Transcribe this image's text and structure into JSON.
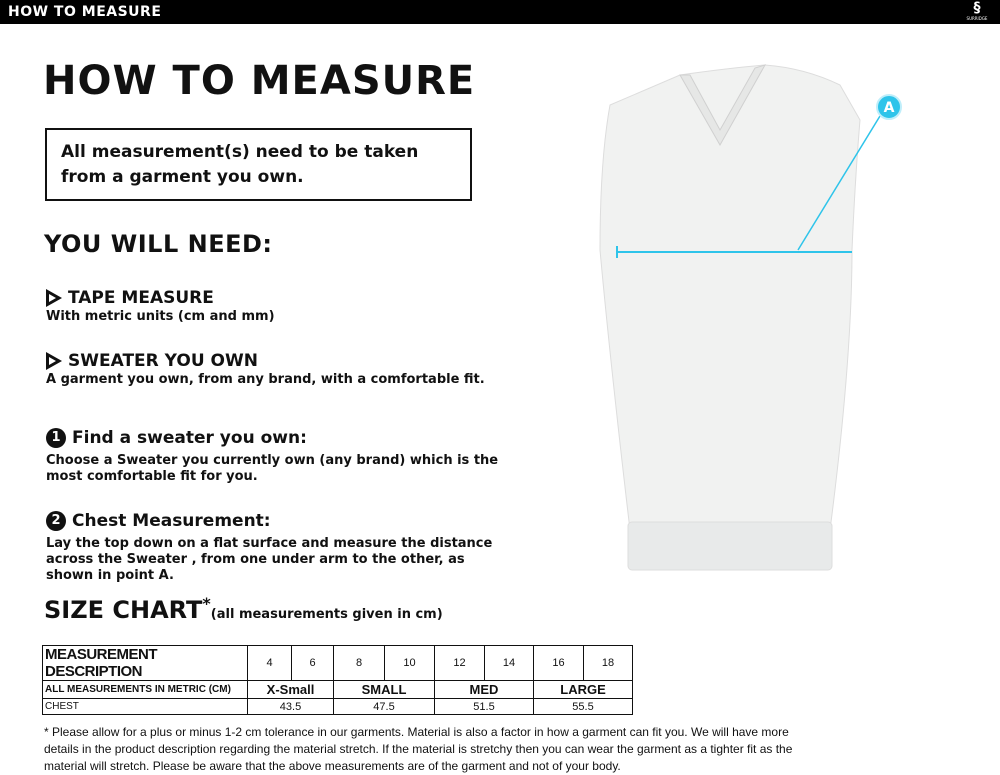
{
  "header": {
    "title": "HOW TO MEASURE",
    "logo_text": "SURRIDGE"
  },
  "page_title": "HOW TO MEASURE",
  "note": "All measurement(s) need to be taken from a garment you own.",
  "you_will_need": {
    "title": "YOU WILL NEED:",
    "items": [
      {
        "title": "TAPE MEASURE",
        "text": "With metric units (cm and mm)"
      },
      {
        "title": "SWEATER YOU OWN",
        "text": "A garment you own, from any brand, with a comfortable fit."
      }
    ]
  },
  "steps": [
    {
      "num": "1",
      "title": "Find a sweater you own:",
      "text": "Choose a Sweater you currently own (any brand) which is the most comfortable fit for you."
    },
    {
      "num": "2",
      "title": "Chest Measurement:",
      "text": "Lay the top down on a flat surface and measure the distance across the Sweater , from one under arm to the other, as shown in point A."
    }
  ],
  "size_chart": {
    "title": "SIZE CHART",
    "asterisk": "*",
    "subtitle": "(all measurements given in cm)",
    "header_label": "MEASUREMENT DESCRIPTION",
    "sizes": [
      "4",
      "6",
      "8",
      "10",
      "12",
      "14",
      "16",
      "18"
    ],
    "metric_label": "ALL MEASUREMENTS IN METRIC (CM)",
    "groups": [
      "X-Small",
      "SMALL",
      "MED",
      "LARGE"
    ],
    "chest_label": "CHEST",
    "chest": [
      "43.5",
      "47.5",
      "51.5",
      "55.5"
    ]
  },
  "image": {
    "point_label": "A",
    "accent": "#2ec4ea"
  },
  "footnote": "* Please allow for a plus or minus 1-2 cm tolerance in our garments. Material is also a factor in how a garment can fit you. We will have more details in the product description regarding the material stretch.  If the material is stretchy then you can wear the garment as a tighter fit as the material will stretch.  Please be aware that the above measurements are of the garment and not of your body."
}
